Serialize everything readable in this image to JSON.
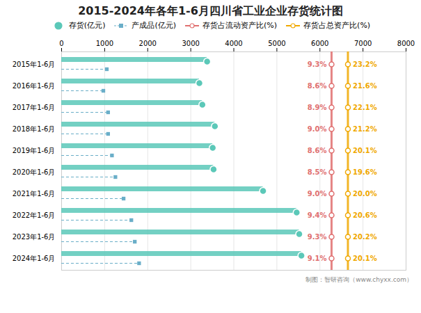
{
  "chart_data": {
    "type": "bar",
    "orientation": "horizontal",
    "title": "2015-2024年各年1-6月四川省工业企业存货统计图",
    "caption": "制图：智研咨询（www.chyxx.com）",
    "categories": [
      "2015年1-6月",
      "2016年1-6月",
      "2017年1-6月",
      "2018年1-6月",
      "2019年1-6月",
      "2020年1-6月",
      "2021年1-6月",
      "2022年1-6月",
      "2023年1-6月",
      "2024年1-6月"
    ],
    "series": [
      {
        "name": "存货(亿元)",
        "color": "#5BC8B8",
        "marker": "circle",
        "values": [
          3380,
          3200,
          3270,
          3560,
          3510,
          3530,
          4680,
          5460,
          5520,
          5570
        ]
      },
      {
        "name": "产成品(亿元)",
        "color": "#6AAEC8",
        "marker": "square",
        "line_style": "dashed",
        "values": [
          1050,
          970,
          1080,
          1080,
          1170,
          1250,
          1440,
          1620,
          1700,
          1800
        ]
      },
      {
        "name": "存货占流动资产比(%)",
        "type": "rule",
        "color": "#E07070",
        "marker": "circle",
        "x": 6270,
        "values": [
          9.3,
          8.6,
          8.9,
          9.0,
          8.6,
          8.5,
          9.0,
          9.4,
          9.3,
          9.1
        ],
        "value_labels": [
          "9.3%",
          "8.6%",
          "8.9%",
          "9.0%",
          "8.6%",
          "8.5%",
          "9.0%",
          "9.4%",
          "9.3%",
          "9.1%"
        ]
      },
      {
        "name": "存货占总资产比(%)",
        "type": "rule",
        "color": "#F0A800",
        "marker": "circle",
        "x": 6650,
        "values": [
          23.2,
          21.6,
          22.1,
          21.2,
          20.1,
          19.6,
          20.0,
          20.6,
          20.2,
          20.1
        ],
        "value_labels": [
          "23.2%",
          "21.6%",
          "22.1%",
          "21.2%",
          "20.1%",
          "19.6%",
          "20.0%",
          "20.6%",
          "20.2%",
          "20.1%"
        ]
      }
    ],
    "xlim": [
      0,
      8000
    ],
    "xticks": [
      0,
      1000,
      2000,
      3000,
      4000,
      5000,
      6000,
      7000,
      8000
    ],
    "grid": true,
    "legend": "top"
  }
}
